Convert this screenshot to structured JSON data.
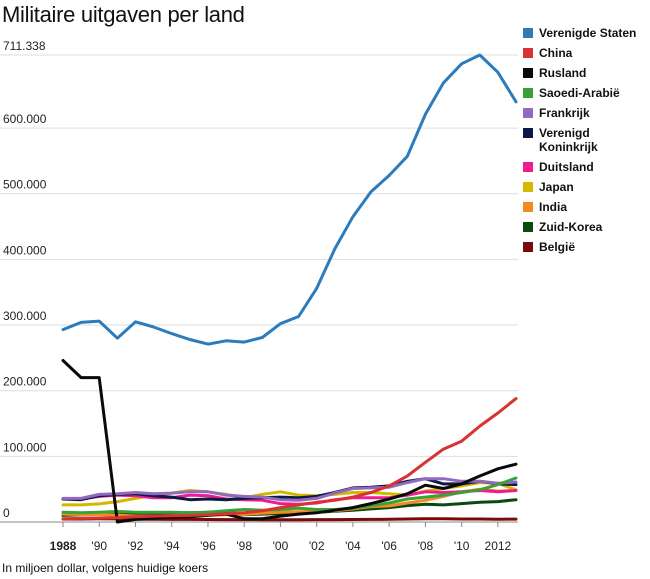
{
  "chart_data": {
    "type": "line",
    "title": "Militaire uitgaven per land",
    "footnote": "In miljoen dollar, volgens huidige koers",
    "ymax_label": "711.338",
    "ylim": [
      0,
      711338
    ],
    "xlim": [
      1988,
      2013
    ],
    "grid": true,
    "legend_position": "right",
    "yticks": [
      {
        "value": 0,
        "label": "0"
      },
      {
        "value": 100000,
        "label": "100.000"
      },
      {
        "value": 200000,
        "label": "200.000"
      },
      {
        "value": 300000,
        "label": "300.000"
      },
      {
        "value": 400000,
        "label": "400.000"
      },
      {
        "value": 500000,
        "label": "500.000"
      },
      {
        "value": 600000,
        "label": "600.000"
      }
    ],
    "xticks": [
      {
        "value": 1988,
        "label": "1988",
        "bold": true
      },
      {
        "value": 1990,
        "label": "'90"
      },
      {
        "value": 1992,
        "label": "'92"
      },
      {
        "value": 1994,
        "label": "'94"
      },
      {
        "value": 1996,
        "label": "'96"
      },
      {
        "value": 1998,
        "label": "'98"
      },
      {
        "value": 2000,
        "label": "'00"
      },
      {
        "value": 2002,
        "label": "'02"
      },
      {
        "value": 2004,
        "label": "'04"
      },
      {
        "value": 2006,
        "label": "'06"
      },
      {
        "value": 2008,
        "label": "'08"
      },
      {
        "value": 2010,
        "label": "'10"
      },
      {
        "value": 2012,
        "label": "2012"
      }
    ],
    "x": [
      1988,
      1989,
      1990,
      1991,
      1992,
      1993,
      1994,
      1995,
      1996,
      1997,
      1998,
      1999,
      2000,
      2001,
      2002,
      2003,
      2004,
      2005,
      2006,
      2007,
      2008,
      2009,
      2010,
      2011,
      2012,
      2013
    ],
    "series": [
      {
        "name": "België",
        "color": "#7a0a0a",
        "values": [
          4500,
          4600,
          4800,
          4700,
          4300,
          4200,
          4000,
          3900,
          3800,
          3700,
          3600,
          3500,
          3500,
          3500,
          3600,
          3700,
          3800,
          3900,
          4100,
          4500,
          5000,
          4900,
          4600,
          4500,
          4300,
          4400
        ]
      },
      {
        "name": "Zuid-Korea",
        "color": "#0a4a12",
        "values": [
          10000,
          11000,
          11500,
          12000,
          12500,
          13000,
          13500,
          14000,
          15000,
          16000,
          11000,
          12000,
          13000,
          14000,
          15000,
          16500,
          18000,
          20000,
          22000,
          25000,
          27000,
          26000,
          28000,
          30000,
          31000,
          34000
        ]
      },
      {
        "name": "India",
        "color": "#f58a1f",
        "values": [
          12000,
          11500,
          11000,
          10500,
          9000,
          9000,
          9500,
          10000,
          10500,
          11000,
          11500,
          13500,
          15000,
          15500,
          16000,
          17000,
          20000,
          23500,
          24500,
          29000,
          33000,
          39000,
          46000,
          50000,
          47000,
          48000
        ]
      },
      {
        "name": "Japan",
        "color": "#d4b800",
        "values": [
          26000,
          26000,
          27500,
          31000,
          36000,
          41000,
          44000,
          48000,
          46000,
          42000,
          37000,
          42000,
          46000,
          41000,
          40000,
          42000,
          45000,
          45000,
          43000,
          41000,
          47000,
          51000,
          55000,
          60000,
          59000,
          49000
        ]
      },
      {
        "name": "Duitsland",
        "color": "#ee1d8f",
        "values": [
          35000,
          35000,
          39000,
          41000,
          40000,
          37000,
          37000,
          41000,
          40000,
          35000,
          34000,
          33000,
          28000,
          27000,
          29000,
          34000,
          37000,
          37000,
          37000,
          41000,
          46000,
          45000,
          46000,
          48000,
          46000,
          48000
        ]
      },
      {
        "name": "Verenigd Koninkrijk",
        "color": "#0d1a45",
        "values": [
          35000,
          34000,
          40000,
          42000,
          43000,
          40000,
          38000,
          34000,
          35000,
          34000,
          36000,
          37000,
          38000,
          37000,
          39000,
          45000,
          52000,
          53000,
          55000,
          62000,
          66000,
          58000,
          58000,
          62000,
          58000,
          57000
        ]
      },
      {
        "name": "Frankrijk",
        "color": "#9169c1",
        "values": [
          36000,
          36000,
          42000,
          43000,
          45000,
          43000,
          44000,
          46000,
          46000,
          41000,
          39000,
          38000,
          34000,
          33000,
          36000,
          44000,
          51000,
          52000,
          53000,
          60000,
          66000,
          66000,
          62000,
          62000,
          59000,
          61000
        ]
      },
      {
        "name": "Saoedi-Arabië",
        "color": "#3aa13a",
        "values": [
          15000,
          14000,
          15000,
          16000,
          15000,
          15000,
          15000,
          14000,
          15000,
          17000,
          19000,
          18000,
          19000,
          21000,
          19000,
          19000,
          21000,
          25000,
          29000,
          35000,
          38000,
          41000,
          45000,
          49000,
          57000,
          67000
        ]
      },
      {
        "name": "Rusland",
        "color": "#0a0a0a",
        "values": [
          246000,
          220000,
          220000,
          0,
          4000,
          6000,
          7000,
          8000,
          10000,
          12000,
          5000,
          5000,
          9000,
          12000,
          14000,
          18000,
          22000,
          28000,
          35000,
          43000,
          56000,
          51000,
          58000,
          70000,
          81000,
          88000
        ]
      },
      {
        "name": "China",
        "color": "#d83232",
        "values": [
          5000,
          5500,
          6000,
          6500,
          8000,
          9000,
          9500,
          10000,
          11000,
          12500,
          14000,
          17000,
          22000,
          26000,
          30000,
          33000,
          38000,
          45000,
          55000,
          70000,
          91000,
          111000,
          123000,
          146000,
          166000,
          188000
        ]
      },
      {
        "name": "Verenigde Staten",
        "color": "#2b7bbd",
        "values": [
          293000,
          304000,
          306000,
          280000,
          305000,
          297000,
          287000,
          278000,
          271000,
          276000,
          274000,
          281000,
          302000,
          313000,
          356000,
          416000,
          465000,
          503000,
          528000,
          557000,
          621000,
          669000,
          698000,
          711338,
          685000,
          640000
        ]
      }
    ]
  },
  "legend": [
    {
      "label": "Verenigde Staten",
      "color": "#2b7bbd"
    },
    {
      "label": "China",
      "color": "#d83232"
    },
    {
      "label": "Rusland",
      "color": "#0a0a0a"
    },
    {
      "label": "Saoedi-Arabië",
      "color": "#3aa13a"
    },
    {
      "label": "Frankrijk",
      "color": "#9169c1"
    },
    {
      "label": "Verenigd Koninkrijk",
      "color": "#0d1a45"
    },
    {
      "label": "Duitsland",
      "color": "#ee1d8f"
    },
    {
      "label": "Japan",
      "color": "#d4b800"
    },
    {
      "label": "India",
      "color": "#f58a1f"
    },
    {
      "label": "Zuid-Korea",
      "color": "#0a4a12"
    },
    {
      "label": "België",
      "color": "#7a0a0a"
    }
  ]
}
